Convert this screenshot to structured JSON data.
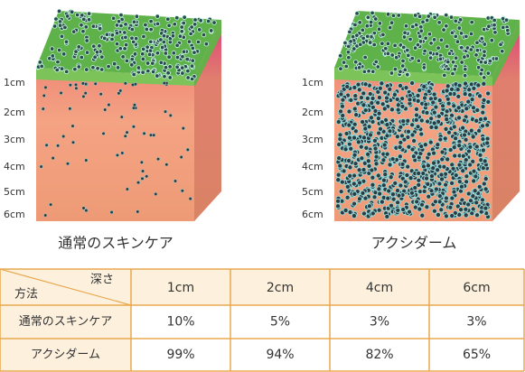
{
  "illustrations": [
    {
      "label": "通常のスキンケア",
      "depth_labels": [
        "1cm",
        "2cm",
        "3cm",
        "4cm",
        "5cm",
        "6cm"
      ]
    },
    {
      "label": "アクシダーム",
      "depth_labels": [
        "1cm",
        "2cm",
        "3cm",
        "4cm",
        "5cm",
        "6cm"
      ]
    }
  ],
  "table": {
    "corner": {
      "depth": "深さ",
      "method": "方法"
    },
    "columns": [
      "1cm",
      "2cm",
      "4cm",
      "6cm"
    ],
    "rows": [
      [
        "通常のスキンケア",
        "10%",
        "5%",
        "3%",
        "3%"
      ],
      [
        "アクシダーム",
        "99%",
        "94%",
        "82%",
        "65%"
      ]
    ]
  }
}
